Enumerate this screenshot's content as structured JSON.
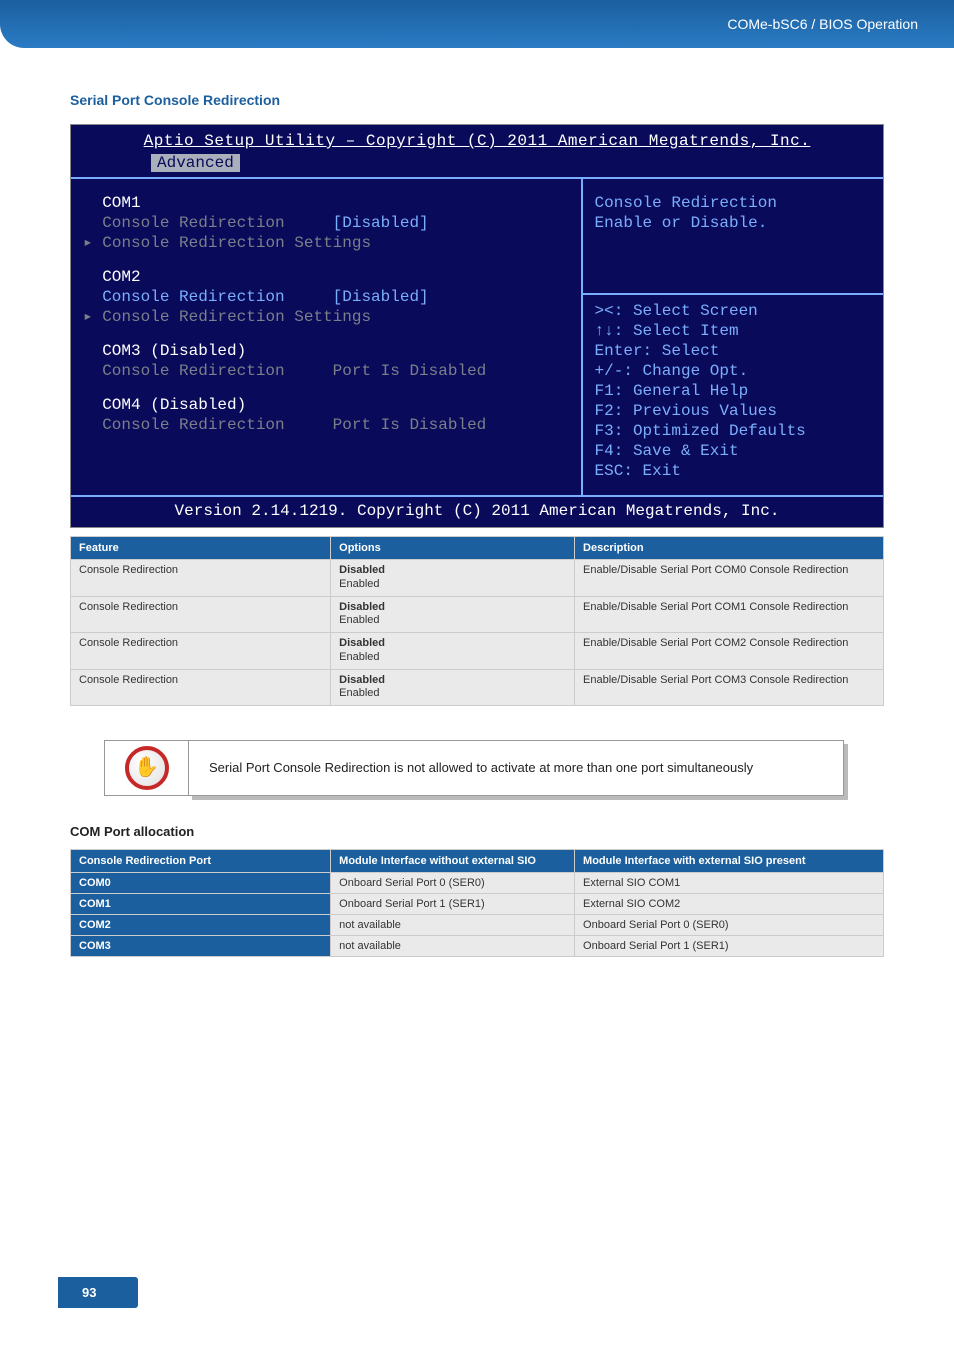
{
  "header_breadcrumb": "COMe-bSC6 / BIOS Operation",
  "section_title": "Serial Port Console Redirection",
  "bios": {
    "title": "Aptio Setup Utility – Copyright (C) 2011 American Megatrends, Inc.",
    "active_tab": "Advanced",
    "help_title": "Console Redirection",
    "help_text": "Enable or Disable.",
    "nav": [
      "><: Select Screen",
      "↑↓: Select Item",
      "Enter: Select",
      "+/-: Change Opt.",
      "F1: General Help",
      "F2: Previous Values",
      "F3: Optimized Defaults",
      "F4: Save & Exit",
      "ESC: Exit"
    ],
    "groups": [
      {
        "label": "COM1",
        "label_color": "#ffffff",
        "lines": [
          {
            "text": "  Console Redirection     ",
            "value": "[Disabled]",
            "text_color": "#7a7f8a",
            "value_color": "#7aaefc"
          },
          {
            "marker": "▸",
            "text": " Console Redirection Settings",
            "text_color": "#7a7f8a"
          }
        ]
      },
      {
        "label": "COM2",
        "label_color": "#ffffff",
        "lines": [
          {
            "text": "  Console Redirection     ",
            "value": "[Disabled]",
            "text_color": "#7aaefc",
            "value_color": "#7aaefc"
          },
          {
            "marker": "▸",
            "text": " Console Redirection Settings",
            "text_color": "#7a7f8a"
          }
        ]
      },
      {
        "label": "COM3 (Disabled)",
        "label_color": "#ffffff",
        "lines": [
          {
            "text": "  Console Redirection     ",
            "value": "Port Is Disabled",
            "text_color": "#7a7f8a",
            "value_color": "#7a7f8a"
          }
        ]
      },
      {
        "label": "COM4 (Disabled)",
        "label_color": "#ffffff",
        "lines": [
          {
            "text": "  Console Redirection     ",
            "value": "Port Is Disabled",
            "text_color": "#7a7f8a",
            "value_color": "#7a7f8a"
          }
        ]
      }
    ],
    "footer": "Version 2.14.1219. Copyright (C) 2011 American Megatrends, Inc."
  },
  "feature_table": {
    "columns": [
      "Feature",
      "Options",
      "Description"
    ],
    "rows": [
      [
        "Console Redirection",
        "Disabled|Enabled",
        "Enable/Disable Serial Port COM0 Console Redirection"
      ],
      [
        "Console Redirection",
        "Disabled|Enabled",
        "Enable/Disable Serial Port COM1 Console Redirection"
      ],
      [
        "Console Redirection",
        "Disabled|Enabled",
        "Enable/Disable Serial Port COM2 Console Redirection"
      ],
      [
        "Console Redirection",
        "Disabled|Enabled",
        "Enable/Disable Serial Port COM3 Console Redirection"
      ]
    ],
    "col_widths": [
      "32%",
      "30%",
      "38%"
    ]
  },
  "note_text": "Serial Port Console Redirection is not allowed to activate at more than one port simultaneously",
  "alloc_title": "COM Port allocation",
  "alloc_table": {
    "columns": [
      "Console Redirection Port",
      "Module Interface without external SIO",
      "Module Interface with external SIO present"
    ],
    "rows": [
      [
        "COM0",
        "Onboard Serial Port 0 (SER0)",
        "External SIO COM1"
      ],
      [
        "COM1",
        "Onboard Serial Port 1 (SER1)",
        "External SIO COM2"
      ],
      [
        "COM2",
        "not available",
        "Onboard Serial Port 0 (SER0)"
      ],
      [
        "COM3",
        "not available",
        "Onboard Serial Port 1 (SER1)"
      ]
    ],
    "col_widths": [
      "32%",
      "30%",
      "38%"
    ]
  },
  "page_number": "93",
  "colors": {
    "brand_blue": "#1b5f9e",
    "bios_bg": "#0a0a5a",
    "bios_blue": "#7aaefc",
    "bios_grey": "#7a7f8a",
    "table_cell_bg": "#eaeaea"
  }
}
